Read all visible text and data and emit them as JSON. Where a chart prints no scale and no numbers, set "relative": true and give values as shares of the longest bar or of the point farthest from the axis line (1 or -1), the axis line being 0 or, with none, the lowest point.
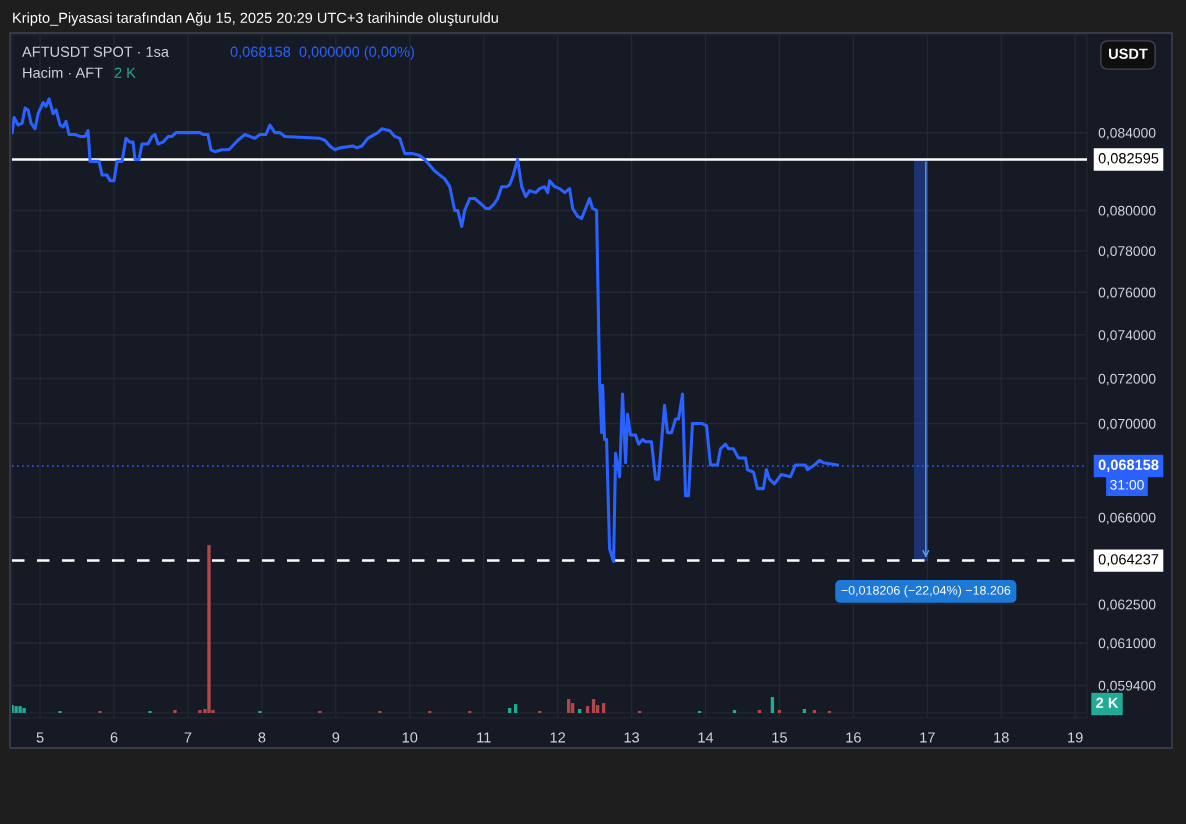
{
  "chart_data": [
    {
      "type": "line",
      "title": "AFTUSDT SPOT · 1sa",
      "annotations": [
        "Kripto_Piyasasi tarafından Ağu 15, 2025 20:29 UTC+3 tarihinde oluşturuldu",
        "0,068158  0,000000 (0,00%)",
        "USDT",
        {
          "text": "−0,018206 (−22,04%) −18.206",
          "x": 17,
          "y": 0.064237
        },
        "31:00"
      ],
      "log": "y",
      "grid": true,
      "xlim": [
        4.62,
        19.16
      ],
      "xticks": [
        5,
        6,
        7,
        8,
        9,
        10,
        11,
        12,
        13,
        14,
        15,
        16,
        17,
        18,
        19
      ],
      "ylim": [
        0.0582,
        0.0893
      ],
      "yticks": [
        {
          "value": 0.084,
          "label": "0,084000"
        },
        {
          "value": 0.08,
          "label": "0,080000"
        },
        {
          "value": 0.078,
          "label": "0,078000"
        },
        {
          "value": 0.076,
          "label": "0,076000"
        },
        {
          "value": 0.074,
          "label": "0,074000"
        },
        {
          "value": 0.072,
          "label": "0,072000"
        },
        {
          "value": 0.07,
          "label": "0,070000"
        },
        {
          "value": 0.066,
          "label": "0,066000"
        },
        {
          "value": 0.0625,
          "label": "0,062500"
        },
        {
          "value": 0.061,
          "label": "0,061000"
        },
        {
          "value": 0.0594,
          "label": "0,059400"
        }
      ],
      "ref_lines": [
        {
          "axis": "y",
          "value": 0.082595,
          "label": "0,082595",
          "color": "#ffffff",
          "line_style": "solid"
        },
        {
          "axis": "y",
          "value": 0.064237,
          "label": "0,064237",
          "color": "#ffffff",
          "line_style": "dashed"
        },
        {
          "axis": "y",
          "value": 0.068158,
          "label": "0,068158",
          "color": "#2962ff",
          "line_style": "dotted"
        }
      ],
      "series": [
        {
          "color": "#2962ff",
          "x": [
            4.622,
            4.649,
            4.703,
            4.757,
            4.797,
            4.838,
            4.878,
            4.932,
            4.973,
            5.041,
            5.081,
            5.122,
            5.176,
            5.216,
            5.27,
            5.311,
            5.351,
            5.392,
            5.473,
            5.541,
            5.608,
            5.649,
            5.676,
            5.797,
            5.838,
            5.905,
            5.946,
            6.0,
            6.041,
            6.108,
            6.162,
            6.216,
            6.257,
            6.284,
            6.338,
            6.378,
            6.459,
            6.514,
            6.554,
            6.595,
            6.662,
            6.73,
            6.784,
            6.838,
            7.162,
            7.203,
            7.27,
            7.311,
            7.365,
            7.459,
            7.554,
            7.676,
            7.77,
            7.905,
            7.973,
            8.054,
            8.108,
            8.176,
            8.243,
            8.311,
            8.784,
            8.851,
            8.919,
            8.986,
            9.054,
            9.23,
            9.284,
            9.351,
            9.432,
            9.568,
            9.622,
            9.73,
            9.797,
            9.865,
            9.932,
            10.041,
            10.135,
            10.203,
            10.338,
            10.405,
            10.473,
            10.541,
            10.608,
            10.649,
            10.703,
            10.743,
            10.811,
            10.878,
            10.973,
            11.027,
            11.081,
            11.135,
            11.189,
            11.243,
            11.311,
            11.351,
            11.392,
            11.459,
            11.514,
            11.568,
            11.622,
            11.703,
            11.757,
            11.824,
            11.865,
            11.892,
            11.959,
            12.027,
            12.095,
            12.162,
            12.203,
            12.27,
            12.324,
            12.378,
            12.432,
            12.473,
            12.527,
            12.568,
            12.595,
            12.608,
            12.635,
            12.662,
            12.703,
            12.757,
            12.784,
            12.838,
            12.878,
            12.919,
            12.946,
            12.986,
            13.054,
            13.095,
            13.149,
            13.189,
            13.27,
            13.324,
            13.365,
            13.446,
            13.486,
            13.541,
            13.595,
            13.635,
            13.689,
            13.73,
            13.77,
            13.824,
            13.946,
            14.014,
            14.068,
            14.162,
            14.203,
            14.27,
            14.311,
            14.378,
            14.446,
            14.541,
            14.568,
            14.649,
            14.703,
            14.784,
            14.824,
            14.865,
            14.932,
            15.027,
            15.149,
            15.216,
            15.351,
            15.378,
            15.473,
            15.541,
            15.595,
            15.784
          ],
          "values": [
            0.084,
            0.0848,
            0.0844,
            0.0845,
            0.0853,
            0.0852,
            0.0845,
            0.0842,
            0.085,
            0.0856,
            0.0854,
            0.0858,
            0.085,
            0.0852,
            0.0844,
            0.0843,
            0.0846,
            0.0839,
            0.0839,
            0.0838,
            0.0838,
            0.0841,
            0.0825,
            0.0825,
            0.0818,
            0.0818,
            0.0815,
            0.0815,
            0.0825,
            0.0825,
            0.0837,
            0.0835,
            0.0835,
            0.0826,
            0.0826,
            0.0834,
            0.0834,
            0.0838,
            0.0839,
            0.0834,
            0.0835,
            0.0838,
            0.0838,
            0.084,
            0.084,
            0.0839,
            0.0839,
            0.0831,
            0.083,
            0.0831,
            0.0831,
            0.0836,
            0.0839,
            0.0837,
            0.0839,
            0.0839,
            0.0844,
            0.084,
            0.084,
            0.0838,
            0.0837,
            0.0836,
            0.0833,
            0.0831,
            0.0832,
            0.0833,
            0.0832,
            0.0833,
            0.0837,
            0.084,
            0.0842,
            0.0841,
            0.0838,
            0.0837,
            0.0829,
            0.0829,
            0.0828,
            0.0826,
            0.082,
            0.0818,
            0.0816,
            0.0812,
            0.08,
            0.08,
            0.0792,
            0.08,
            0.0806,
            0.0806,
            0.0803,
            0.0801,
            0.0801,
            0.0803,
            0.0806,
            0.0812,
            0.0812,
            0.0813,
            0.0817,
            0.0826,
            0.0812,
            0.0807,
            0.081,
            0.0809,
            0.0811,
            0.0812,
            0.0809,
            0.0815,
            0.0812,
            0.0811,
            0.0809,
            0.0811,
            0.0801,
            0.0797,
            0.0796,
            0.0801,
            0.0806,
            0.0801,
            0.08,
            0.0718,
            0.0696,
            0.0717,
            0.0693,
            0.0693,
            0.0647,
            0.0642,
            0.0687,
            0.0677,
            0.0713,
            0.0683,
            0.0704,
            0.0695,
            0.0695,
            0.0691,
            0.0693,
            0.0692,
            0.0692,
            0.0676,
            0.0676,
            0.0708,
            0.0696,
            0.0696,
            0.0702,
            0.0702,
            0.0713,
            0.0669,
            0.0669,
            0.07,
            0.07,
            0.0699,
            0.0682,
            0.0682,
            0.0689,
            0.0691,
            0.0689,
            0.0689,
            0.0685,
            0.0685,
            0.068,
            0.0679,
            0.0672,
            0.0672,
            0.068,
            0.0676,
            0.0674,
            0.0678,
            0.0677,
            0.0682,
            0.0682,
            0.068,
            0.0682,
            0.0684,
            0.0683,
            0.0682
          ]
        }
      ]
    },
    {
      "type": "bar",
      "title": "Hacim · AFT",
      "relative": true,
      "annotations": [
        "2 K",
        "2 K"
      ],
      "xlim": [
        4.62,
        19.16
      ],
      "x": [
        4.622,
        4.676,
        4.73,
        4.784,
        5.27,
        5.811,
        6.486,
        6.824,
        7.162,
        7.23,
        7.284,
        7.338,
        7.973,
        8.784,
        9.595,
        10.27,
        10.811,
        11.351,
        11.432,
        11.757,
        12.149,
        12.203,
        12.297,
        12.405,
        12.486,
        12.541,
        12.622,
        13.108,
        13.919,
        14.392,
        14.73,
        14.905,
        15.0,
        15.338,
        15.473,
        15.676
      ],
      "values": [
        0.047,
        0.041,
        0.041,
        0.03,
        0.012,
        0.012,
        0.012,
        0.018,
        0.018,
        0.024,
        1.0,
        0.018,
        0.012,
        0.012,
        0.012,
        0.012,
        0.012,
        0.03,
        0.053,
        0.012,
        0.083,
        0.059,
        0.024,
        0.041,
        0.083,
        0.047,
        0.059,
        0.012,
        0.012,
        0.018,
        0.018,
        0.095,
        0.018,
        0.024,
        0.018,
        0.012
      ],
      "colors": [
        "#22ab94",
        "#22ab94",
        "#22ab94",
        "#22ab94",
        "#22ab94",
        "#b2474a",
        "#22ab94",
        "#b2474a",
        "#b2474a",
        "#b2474a",
        "#b2474a",
        "#b2474a",
        "#22ab94",
        "#b2474a",
        "#b2474a",
        "#b2474a",
        "#b2474a",
        "#22ab94",
        "#22ab94",
        "#b2474a",
        "#b2474a",
        "#b2474a",
        "#22ab94",
        "#b2474a",
        "#b2474a",
        "#b2474a",
        "#b2474a",
        "#b2474a",
        "#22ab94",
        "#22ab94",
        "#b2474a",
        "#22ab94",
        "#b2474a",
        "#22ab94",
        "#b2474a",
        "#b2474a"
      ]
    }
  ]
}
